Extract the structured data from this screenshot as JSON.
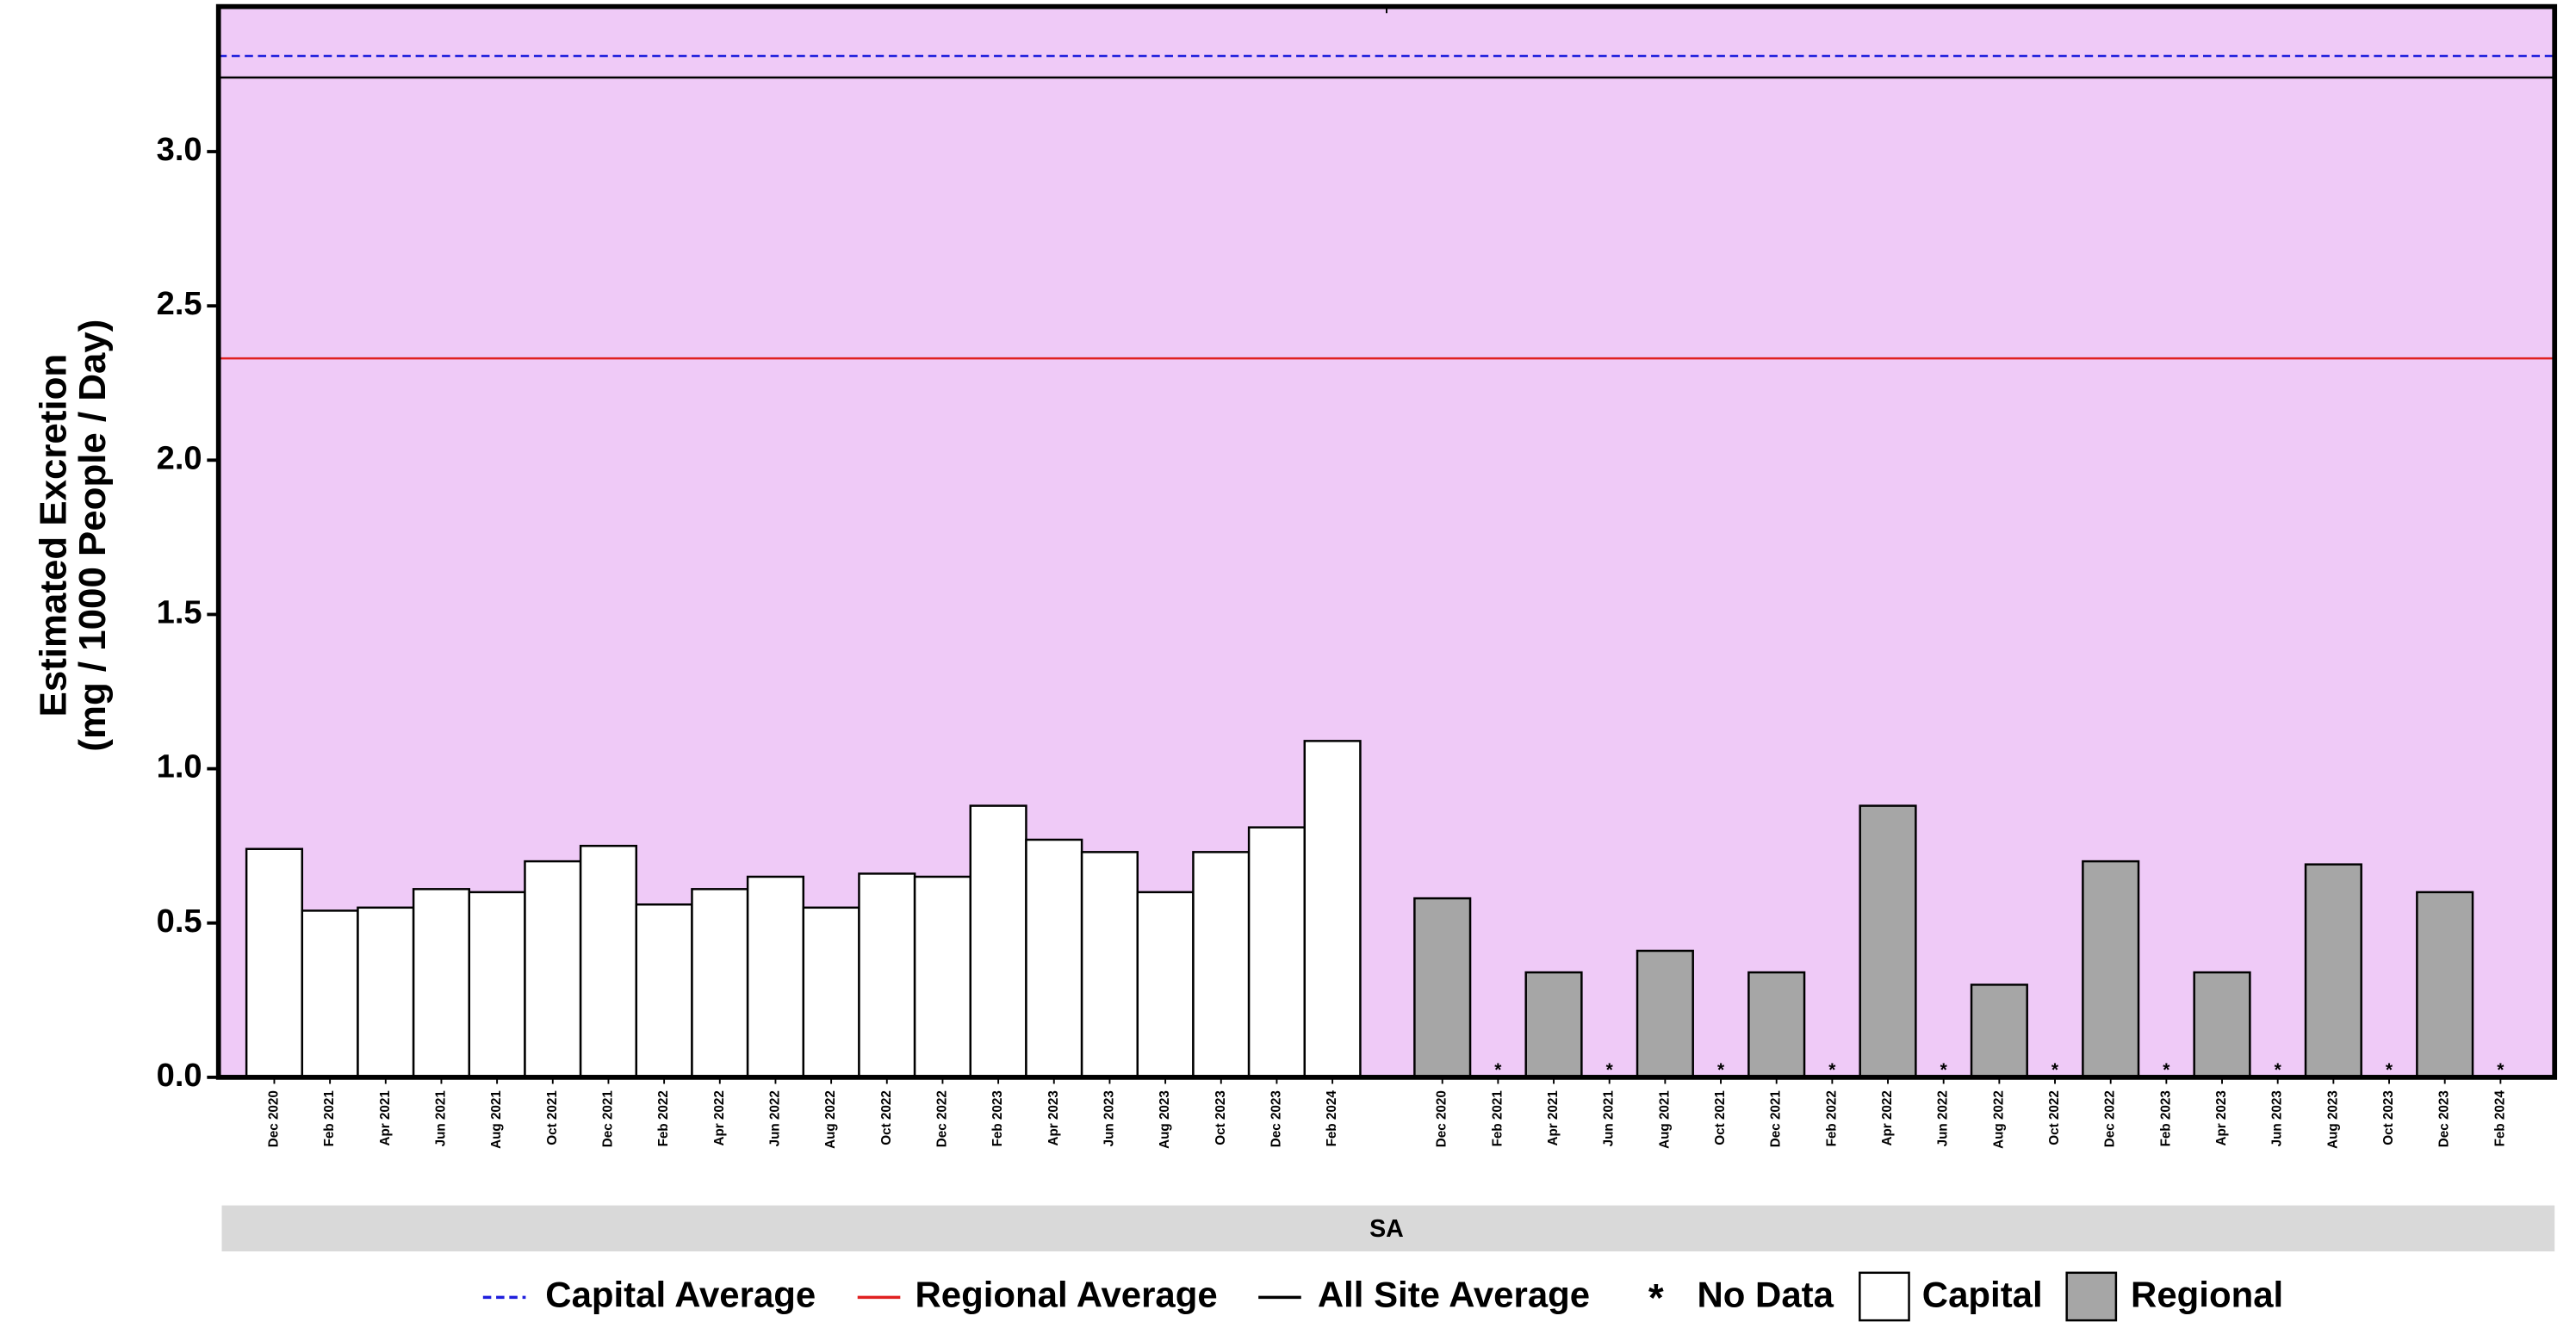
{
  "chart_data": {
    "type": "bar",
    "panel": "SA",
    "ylabel": [
      "Estimated Excretion",
      "(mg / 1000 People / Day)"
    ],
    "background": "#efcaf7",
    "ylim": [
      0,
      3.47
    ],
    "yticks": [
      {
        "value": 0,
        "label": "0.0"
      },
      0.5,
      {
        "value": 1,
        "label": "1.0"
      },
      1.5,
      {
        "value": 2,
        "label": "2.0"
      },
      2.5,
      {
        "value": 3,
        "label": "3.0"
      }
    ],
    "no_data_marker": "*",
    "no_data_label": "No Data",
    "reference_lines": [
      {
        "name": "Capital Average",
        "value": 3.31,
        "color": "#1f1fdd",
        "dashed": true
      },
      {
        "name": "Regional Average",
        "value": 2.33,
        "color": "#e02020",
        "dashed": false
      },
      {
        "name": "All Site Average",
        "value": 3.24,
        "color": "#000000",
        "dashed": false
      }
    ],
    "series": [
      {
        "name": "Capital",
        "color": "#ffffff",
        "categories": [
          "Dec 2020",
          "Feb 2021",
          "Apr 2021",
          "Jun 2021",
          "Aug 2021",
          "Oct 2021",
          "Dec 2021",
          "Feb 2022",
          "Apr 2022",
          "Jun 2022",
          "Aug 2022",
          "Oct 2022",
          "Dec 2022",
          "Feb 2023",
          "Apr 2023",
          "Jun 2023",
          "Aug 2023",
          "Oct 2023",
          "Dec 2023",
          "Feb 2024"
        ],
        "values": [
          0.74,
          0.54,
          0.55,
          0.61,
          0.6,
          0.7,
          0.75,
          0.56,
          0.61,
          0.65,
          0.55,
          0.66,
          0.65,
          0.88,
          0.77,
          0.73,
          0.6,
          0.73,
          0.81,
          1.09
        ]
      },
      {
        "name": "Regional",
        "color": "#a6a6a6",
        "categories": [
          "Dec 2020",
          "Feb 2021",
          "Apr 2021",
          "Jun 2021",
          "Aug 2021",
          "Oct 2021",
          "Dec 2021",
          "Feb 2022",
          "Apr 2022",
          "Jun 2022",
          "Aug 2022",
          "Oct 2022",
          "Dec 2022",
          "Feb 2023",
          "Apr 2023",
          "Jun 2023",
          "Aug 2023",
          "Oct 2023",
          "Dec 2023",
          "Feb 2024"
        ],
        "values": [
          0.58,
          null,
          0.34,
          null,
          0.41,
          null,
          0.34,
          null,
          0.88,
          null,
          0.3,
          null,
          0.7,
          null,
          0.34,
          null,
          0.69,
          null,
          0.6,
          null
        ]
      }
    ]
  }
}
